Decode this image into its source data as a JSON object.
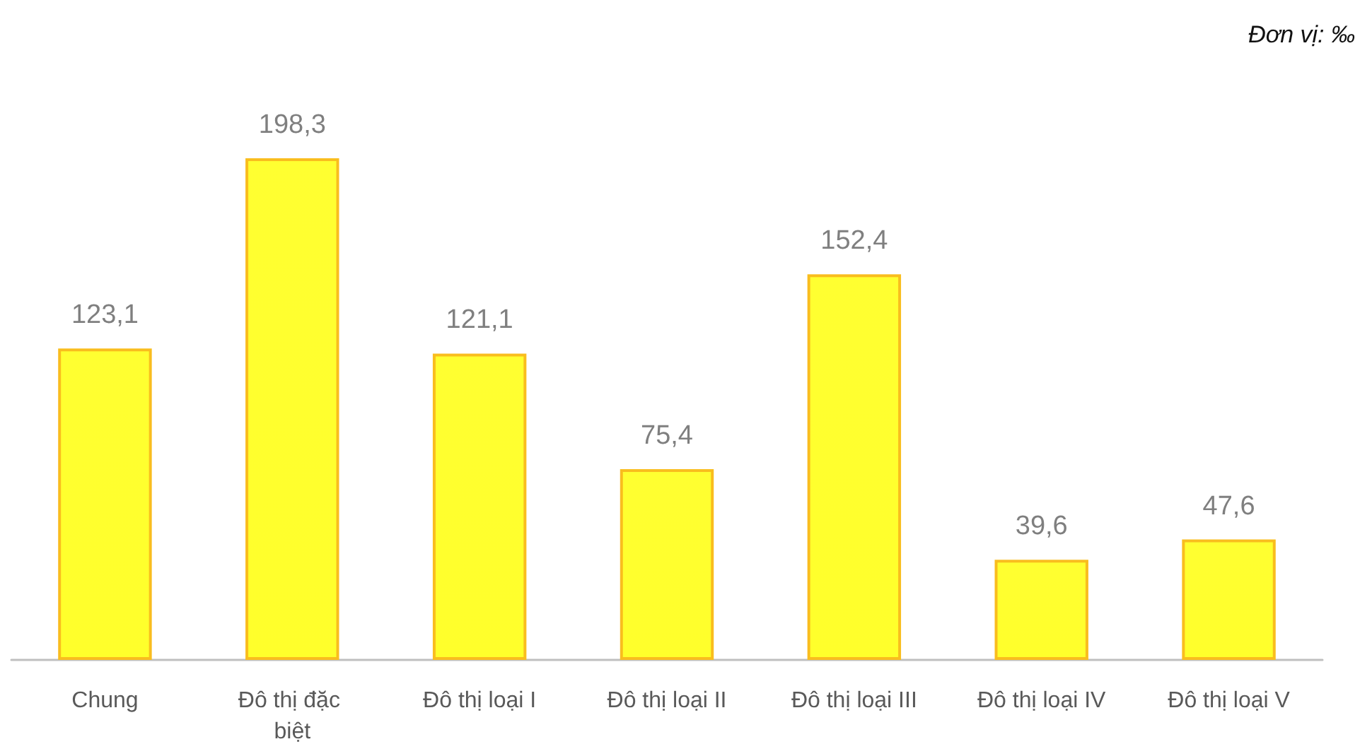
{
  "chart_data": {
    "type": "bar",
    "annotations": [
      "Đơn vị: ‰"
    ],
    "categories": [
      "Chung",
      "Đô thị đặc biệt",
      "Đô thị loại I",
      "Đô thị loại II",
      "Đô thị loại III",
      "Đô thị loại IV",
      "Đô thị loại V"
    ],
    "values": [
      123.1,
      198.3,
      121.1,
      75.4,
      152.4,
      39.6,
      47.6
    ],
    "value_labels": [
      "123,1",
      "198,3",
      "121,1",
      "75,4",
      "152,4",
      "39,6",
      "47,6"
    ],
    "color": "#f9bd1e"
  }
}
